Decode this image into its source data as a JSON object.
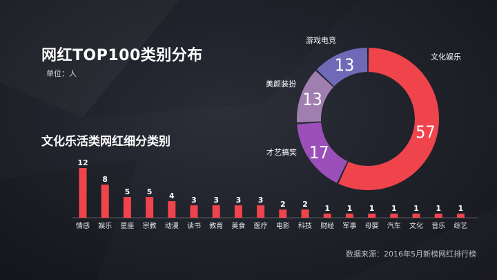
{
  "main_title": "网红TOP100类别分布",
  "unit": "单位：人",
  "bar_title": "文化乐活类网红细分类别",
  "source": "数据来源：2016年5月新榜网红排行榜",
  "chart_data": [
    {
      "type": "pie",
      "variant": "donut",
      "labels": [
        "文化娱乐",
        "才艺搞笑",
        "美颜装扮",
        "游戏电竞"
      ],
      "values": [
        57,
        17,
        13,
        13
      ],
      "colors": [
        "#f0444c",
        "#9b4fb8",
        "#a07fb0",
        "#6f6ab8"
      ]
    },
    {
      "type": "bar",
      "categories": [
        "情感",
        "娱乐",
        "星座",
        "宗教",
        "动漫",
        "读书",
        "教育",
        "美食",
        "医疗",
        "电影",
        "科技",
        "财经",
        "军事",
        "母婴",
        "汽车",
        "文化",
        "音乐",
        "综艺"
      ],
      "values": [
        12,
        8,
        5,
        5,
        4,
        3,
        3,
        3,
        3,
        2,
        2,
        1,
        1,
        1,
        1,
        1,
        1,
        1
      ],
      "color": "#f0444c",
      "ylim": [
        0,
        12
      ]
    }
  ]
}
